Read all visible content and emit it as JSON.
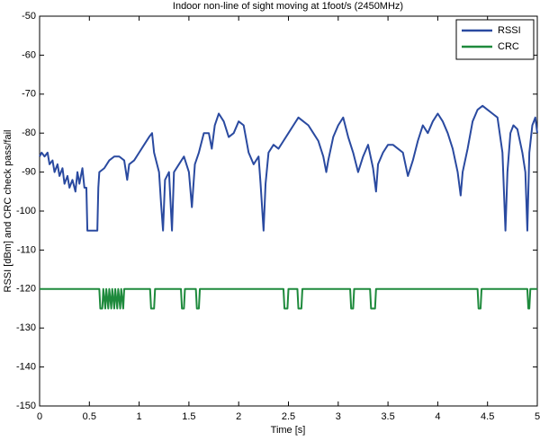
{
  "chart_data": {
    "type": "line",
    "title": "Indoor non-line of sight moving at 1foot/s (2450MHz)",
    "x_label": "Time [s]",
    "y_label": "RSSI [dBm] and CRC check pass/fail",
    "xlim": [
      0,
      5
    ],
    "xticks": [
      0,
      0.5,
      1,
      1.5,
      2,
      2.5,
      3,
      3.5,
      4,
      4.5,
      5
    ],
    "ylim": [
      -150,
      -50
    ],
    "yticks": [
      -150,
      -140,
      -130,
      -120,
      -110,
      -100,
      -90,
      -80,
      -70,
      -60,
      -50
    ],
    "grid": false,
    "legend": "upper right",
    "series": [
      {
        "name": "RSSI",
        "color": "#2a4aa0",
        "x": [
          0,
          0.02,
          0.05,
          0.08,
          0.1,
          0.13,
          0.15,
          0.18,
          0.2,
          0.23,
          0.25,
          0.28,
          0.3,
          0.33,
          0.36,
          0.38,
          0.4,
          0.43,
          0.45,
          0.47,
          0.48,
          0.58,
          0.59,
          0.6,
          0.65,
          0.7,
          0.75,
          0.8,
          0.85,
          0.88,
          0.9,
          0.95,
          1.0,
          1.05,
          1.1,
          1.13,
          1.15,
          1.2,
          1.22,
          1.24,
          1.26,
          1.3,
          1.33,
          1.35,
          1.4,
          1.45,
          1.5,
          1.53,
          1.56,
          1.6,
          1.65,
          1.7,
          1.73,
          1.76,
          1.8,
          1.85,
          1.9,
          1.95,
          2.0,
          2.05,
          2.1,
          2.15,
          2.2,
          2.22,
          2.25,
          2.27,
          2.3,
          2.35,
          2.4,
          2.45,
          2.5,
          2.55,
          2.6,
          2.65,
          2.7,
          2.75,
          2.8,
          2.85,
          2.88,
          2.9,
          2.95,
          3.0,
          3.05,
          3.1,
          3.15,
          3.2,
          3.25,
          3.3,
          3.35,
          3.38,
          3.4,
          3.45,
          3.5,
          3.55,
          3.6,
          3.65,
          3.7,
          3.75,
          3.8,
          3.85,
          3.9,
          3.95,
          4.0,
          4.05,
          4.1,
          4.15,
          4.2,
          4.23,
          4.25,
          4.3,
          4.35,
          4.4,
          4.45,
          4.5,
          4.55,
          4.6,
          4.65,
          4.68,
          4.7,
          4.73,
          4.76,
          4.8,
          4.85,
          4.88,
          4.9,
          4.92,
          4.95,
          4.98,
          5.0
        ],
        "values": [
          -86,
          -85,
          -86,
          -85,
          -88,
          -87,
          -90,
          -88,
          -91,
          -89,
          -93,
          -91,
          -94,
          -92,
          -95,
          -90,
          -93,
          -89,
          -94,
          -94,
          -105,
          -105,
          -94,
          -90,
          -89,
          -87,
          -86,
          -86,
          -87,
          -92,
          -88,
          -87,
          -85,
          -83,
          -81,
          -80,
          -85,
          -90,
          -98,
          -105,
          -92,
          -90,
          -105,
          -90,
          -88,
          -86,
          -90,
          -99,
          -88,
          -85,
          -80,
          -80,
          -84,
          -78,
          -75,
          -77,
          -81,
          -80,
          -77,
          -78,
          -85,
          -88,
          -86,
          -93,
          -105,
          -93,
          -85,
          -83,
          -84,
          -82,
          -80,
          -78,
          -76,
          -77,
          -78,
          -80,
          -82,
          -86,
          -90,
          -87,
          -81,
          -78,
          -76,
          -81,
          -85,
          -90,
          -86,
          -83,
          -89,
          -95,
          -88,
          -85,
          -83,
          -83,
          -84,
          -85,
          -91,
          -87,
          -82,
          -78,
          -80,
          -77,
          -75,
          -77,
          -80,
          -84,
          -90,
          -96,
          -90,
          -84,
          -77,
          -74,
          -73,
          -74,
          -75,
          -76,
          -85,
          -105,
          -90,
          -80,
          -78,
          -79,
          -85,
          -90,
          -105,
          -85,
          -78,
          -76,
          -80
        ]
      },
      {
        "name": "CRC",
        "color": "#1e8a3c",
        "x": [
          0,
          0.6,
          0.61,
          0.63,
          0.64,
          0.66,
          0.67,
          0.69,
          0.7,
          0.72,
          0.73,
          0.75,
          0.76,
          0.78,
          0.79,
          0.81,
          0.82,
          0.84,
          0.85,
          1.11,
          1.12,
          1.15,
          1.16,
          1.42,
          1.43,
          1.45,
          1.46,
          1.57,
          1.58,
          1.6,
          1.61,
          2.45,
          2.46,
          2.49,
          2.5,
          2.59,
          2.6,
          2.63,
          2.64,
          3.12,
          3.13,
          3.15,
          3.16,
          3.32,
          3.33,
          3.37,
          3.38,
          4.4,
          4.41,
          4.43,
          4.44,
          4.9,
          4.91,
          4.92,
          4.93,
          5
        ],
        "values": [
          -120,
          -120,
          -125,
          -125,
          -120,
          -125,
          -120,
          -125,
          -120,
          -125,
          -120,
          -125,
          -120,
          -125,
          -120,
          -125,
          -120,
          -125,
          -120,
          -120,
          -125,
          -125,
          -120,
          -120,
          -125,
          -125,
          -120,
          -120,
          -125,
          -125,
          -120,
          -120,
          -125,
          -125,
          -120,
          -120,
          -125,
          -125,
          -120,
          -120,
          -125,
          -125,
          -120,
          -120,
          -125,
          -125,
          -120,
          -120,
          -125,
          -125,
          -120,
          -120,
          -125,
          -125,
          -120,
          -120
        ]
      }
    ]
  }
}
